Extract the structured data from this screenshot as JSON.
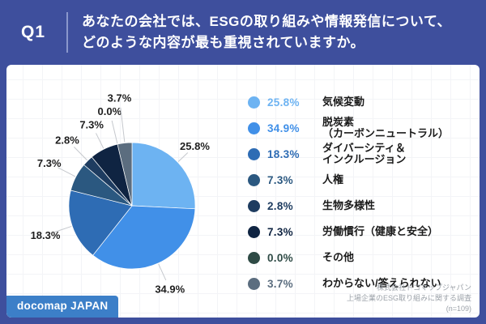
{
  "header": {
    "qnum": "Q1",
    "question_line1": "あなたの会社では、ESGの取り組みや情報発信について、",
    "question_line2": "どのような内容が最も重視されていますか。"
  },
  "chart_data": {
    "type": "pie",
    "title": "あなたの会社では、ESGの取り組みや情報発信について、どのような内容が最も重視されていますか。",
    "start_angle": "12時の位置から時計回り",
    "unit": "%",
    "series": [
      {
        "label": "気候変動",
        "value": 25.8,
        "color": "#6db3f2"
      },
      {
        "label": "脱炭素\n（カーボンニュートラル）",
        "value": 34.9,
        "color": "#4190e8"
      },
      {
        "label": "ダイバーシティ＆\nインクルージョン",
        "value": 18.3,
        "color": "#2e6cb4"
      },
      {
        "label": "人権",
        "value": 7.3,
        "color": "#2b5880"
      },
      {
        "label": "生物多様性",
        "value": 2.8,
        "color": "#1e3c60"
      },
      {
        "label": "労働慣行（健康と安全）",
        "value": 7.3,
        "color": "#0f2442"
      },
      {
        "label": "その他",
        "value": 0.0,
        "color": "#2e4a45"
      },
      {
        "label": "わからない/答えられない",
        "value": 3.7,
        "color": "#5b6d7f"
      }
    ],
    "legend_position": "right"
  },
  "logo": {
    "text": "docomap JAPAN"
  },
  "source": {
    "line1": "株式会社ドコマップジャパン",
    "line2": "上場企業のESG取り組みに関する調査",
    "line3": "(n=109)"
  },
  "colors": {
    "frame": "#3e4f9d",
    "header_divider": "#8a97cc",
    "badge": "#3c7fc8",
    "leader_line": "#c5c8cd"
  }
}
